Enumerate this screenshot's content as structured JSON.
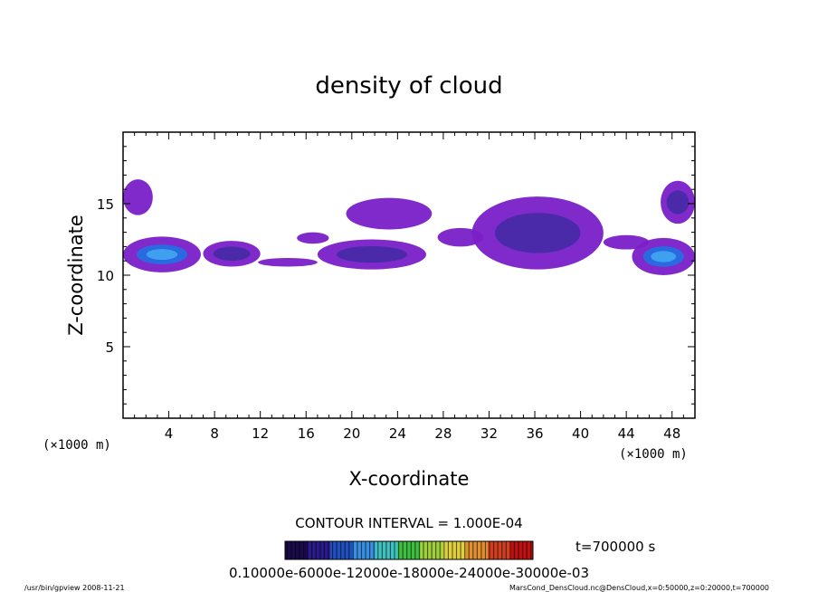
{
  "chart_data": {
    "type": "heatmap",
    "title": "density of cloud",
    "xlabel": "X-coordinate",
    "ylabel": "Z-coordinate",
    "x_unit": "(×1000 m)",
    "xlim": [
      0,
      50
    ],
    "ylim": [
      0,
      20
    ],
    "x_ticks": [
      4,
      8,
      12,
      16,
      20,
      24,
      28,
      32,
      36,
      40,
      44,
      48
    ],
    "y_ticks": [
      5,
      10,
      15
    ],
    "contour_interval_text": "CONTOUR INTERVAL = 1.000E-04",
    "time_text": "t=700000 s",
    "colorbar_label_text": "0.10000e-6000e-12000e-18000e-24000e-30000e-03",
    "colorbar_colors": [
      "#1a0a4a",
      "#2a1a8a",
      "#2050c0",
      "#3a90e0",
      "#40c0c0",
      "#40c040",
      "#a0d040",
      "#e0d040",
      "#e09030",
      "#d04020",
      "#c01010"
    ],
    "cloud_regions": [
      {
        "x": [
          0,
          2.6
        ],
        "z": [
          14.2,
          16.7
        ],
        "level": "low"
      },
      {
        "x": [
          0,
          6.8
        ],
        "z": [
          10.2,
          12.7
        ],
        "level": "high"
      },
      {
        "x": [
          7,
          12
        ],
        "z": [
          10.6,
          12.4
        ],
        "level": "mid"
      },
      {
        "x": [
          11.8,
          17
        ],
        "z": [
          10.6,
          11.2
        ],
        "level": "low"
      },
      {
        "x": [
          15.2,
          18
        ],
        "z": [
          12.2,
          13.0
        ],
        "level": "low"
      },
      {
        "x": [
          17,
          26.5
        ],
        "z": [
          10.4,
          12.5
        ],
        "level": "mid"
      },
      {
        "x": [
          19.5,
          27
        ],
        "z": [
          13.2,
          15.4
        ],
        "level": "low"
      },
      {
        "x": [
          27.5,
          31.5
        ],
        "z": [
          12.0,
          13.3
        ],
        "level": "low"
      },
      {
        "x": [
          30.5,
          42
        ],
        "z": [
          10.4,
          15.5
        ],
        "level": "mid"
      },
      {
        "x": [
          42,
          46
        ],
        "z": [
          11.8,
          12.8
        ],
        "level": "low"
      },
      {
        "x": [
          44.5,
          50
        ],
        "z": [
          10.0,
          12.6
        ],
        "level": "high"
      },
      {
        "x": [
          47,
          50
        ],
        "z": [
          13.6,
          16.6
        ],
        "level": "mid"
      }
    ]
  },
  "footer": {
    "left": "/usr/bin/gpview   2008-11-21",
    "right": "MarsCond_DensCloud.nc@DensCloud,x=0:50000,z=0:20000,t=700000"
  },
  "colors": {
    "cloud_low": "#7a1fc8",
    "cloud_mid": "#4a2aa8",
    "cloud_high": "#2a6ae0",
    "cloud_peak": "#40a0f0"
  }
}
